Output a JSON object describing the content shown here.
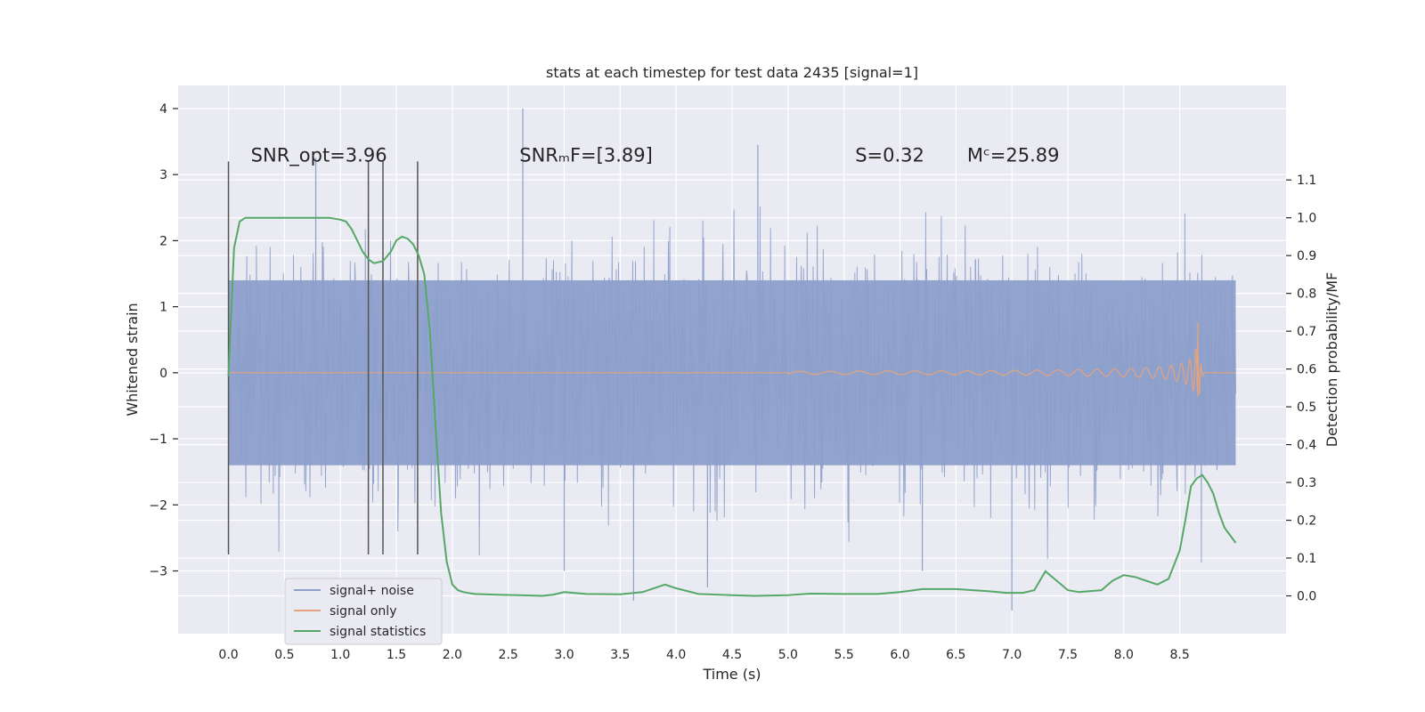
{
  "chart_data": {
    "type": "line",
    "title": "stats at each timestep for test data 2435 [signal=1]",
    "xlabel": "Time (s)",
    "ylabel": "Whitened strain",
    "y2label": "Detection probability/MF",
    "xlim": [
      -0.45,
      9.45
    ],
    "ylim": [
      -3.95,
      4.35
    ],
    "y2lim": [
      -0.1,
      1.35
    ],
    "xticks": [
      0.0,
      0.5,
      1.0,
      1.5,
      2.0,
      2.5,
      3.0,
      3.5,
      4.0,
      4.5,
      5.0,
      5.5,
      6.0,
      6.5,
      7.0,
      7.5,
      8.0,
      8.5
    ],
    "xtick_labels": [
      "0.0",
      "0.5",
      "1.0",
      "1.5",
      "2.0",
      "2.5",
      "3.0",
      "3.5",
      "4.0",
      "4.5",
      "5.0",
      "5.5",
      "6.0",
      "6.5",
      "7.0",
      "7.5",
      "8.0",
      "8.5"
    ],
    "yticks": [
      -3,
      -2,
      -1,
      0,
      1,
      2,
      3,
      4
    ],
    "ytick_labels": [
      "−3",
      "−2",
      "−1",
      "0",
      "1",
      "2",
      "3",
      "4"
    ],
    "y2ticks": [
      0.0,
      0.1,
      0.2,
      0.3,
      0.4,
      0.5,
      0.6,
      0.7,
      0.8,
      0.9,
      1.0,
      1.1
    ],
    "y2tick_labels": [
      "0.0",
      "0.1",
      "0.2",
      "0.3",
      "0.4",
      "0.5",
      "0.6",
      "0.7",
      "0.8",
      "0.9",
      "1.0",
      "1.1"
    ],
    "grid": true,
    "legend_position": "lower-left",
    "annotations": [
      {
        "label": "SNR_opt=3.96",
        "x": 0.2,
        "y": 3.2
      },
      {
        "label": "SNRₘF=[3.89]",
        "x": 2.6,
        "y": 3.2
      },
      {
        "label": "S=0.32",
        "x": 5.6,
        "y": 3.2
      },
      {
        "label": "Mᶜ=25.89",
        "x": 6.6,
        "y": 3.2
      }
    ],
    "vertical_markers": {
      "x": [
        0.0,
        1.25,
        1.38,
        1.69
      ],
      "ymin": -2.75,
      "ymax": 3.2
    },
    "series": [
      {
        "name": "signal+ noise",
        "color": "#8da0cb",
        "axis": "left",
        "x_range": [
          0.0,
          9.0
        ],
        "typical_amplitude": 1.4,
        "max_value": 4.0,
        "min_value": -3.45
      },
      {
        "name": "signal only",
        "color": "#e3a37f",
        "axis": "left",
        "x_range": [
          0.0,
          9.0
        ],
        "chirp_start": 5.0,
        "merger_time": 8.66,
        "peak_amplitude": 0.83
      },
      {
        "name": "signal statistics",
        "color": "#55a868",
        "axis": "right",
        "x": [
          0.0,
          0.05,
          0.1,
          0.15,
          0.2,
          0.3,
          0.5,
          0.7,
          0.9,
          1.0,
          1.05,
          1.1,
          1.15,
          1.2,
          1.25,
          1.3,
          1.38,
          1.45,
          1.5,
          1.55,
          1.6,
          1.65,
          1.7,
          1.75,
          1.8,
          1.85,
          1.9,
          1.95,
          2.0,
          2.05,
          2.1,
          2.2,
          2.4,
          2.6,
          2.8,
          2.9,
          3.0,
          3.2,
          3.5,
          3.7,
          3.9,
          4.0,
          4.2,
          4.5,
          4.7,
          5.0,
          5.2,
          5.5,
          5.8,
          6.0,
          6.2,
          6.5,
          6.8,
          6.95,
          7.1,
          7.2,
          7.3,
          7.4,
          7.5,
          7.6,
          7.8,
          7.9,
          8.0,
          8.1,
          8.2,
          8.3,
          8.4,
          8.5,
          8.55,
          8.6,
          8.65,
          8.7,
          8.75,
          8.8,
          8.85,
          8.9,
          8.95,
          9.0
        ],
        "y": [
          0.58,
          0.92,
          0.99,
          1.0,
          1.0,
          1.0,
          1.0,
          1.0,
          1.0,
          0.995,
          0.99,
          0.97,
          0.94,
          0.91,
          0.89,
          0.88,
          0.885,
          0.91,
          0.94,
          0.95,
          0.945,
          0.93,
          0.9,
          0.85,
          0.7,
          0.45,
          0.22,
          0.09,
          0.03,
          0.015,
          0.01,
          0.005,
          0.003,
          0.002,
          0.0,
          0.003,
          0.01,
          0.005,
          0.004,
          0.01,
          0.03,
          0.02,
          0.005,
          0.002,
          0.0,
          0.002,
          0.006,
          0.005,
          0.005,
          0.01,
          0.018,
          0.018,
          0.012,
          0.008,
          0.008,
          0.015,
          0.065,
          0.04,
          0.015,
          0.01,
          0.015,
          0.04,
          0.055,
          0.05,
          0.04,
          0.03,
          0.045,
          0.12,
          0.2,
          0.29,
          0.31,
          0.32,
          0.3,
          0.27,
          0.22,
          0.18,
          0.16,
          0.14
        ]
      }
    ]
  },
  "legend": {
    "items": [
      {
        "label": "signal+ noise",
        "color": "#8da0cb"
      },
      {
        "label": "signal only",
        "color": "#e3a37f"
      },
      {
        "label": "signal statistics",
        "color": "#55a868"
      }
    ]
  },
  "colors": {
    "figure_bg": "#ffffff",
    "plot_bg": "#eaeaf2",
    "grid": "#ffffff",
    "marker_line": "#555555"
  }
}
